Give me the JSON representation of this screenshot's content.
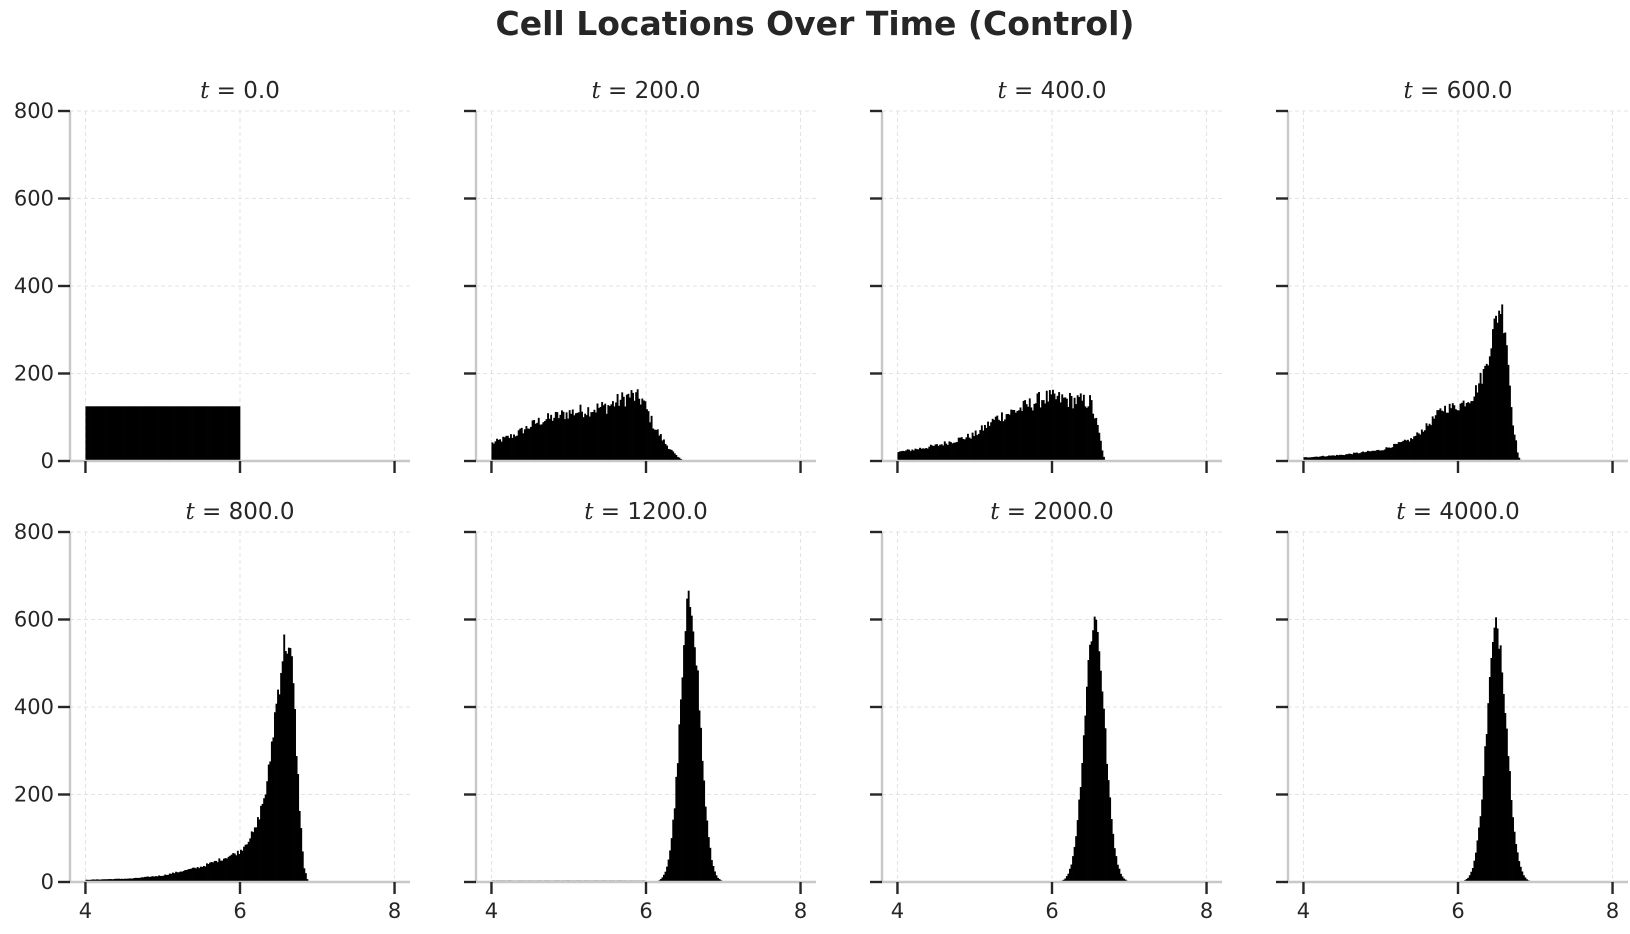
{
  "figure": {
    "suptitle": "Cell Locations Over Time (Control)"
  },
  "chart_data": [
    {
      "type": "bar",
      "title": "t = 0.0",
      "title_prefix": "t",
      "title_value": "0.0",
      "xlim": [
        3.8,
        8.2
      ],
      "ylim": [
        0,
        800
      ],
      "xticks": [
        4,
        6,
        8
      ],
      "yticks": [
        0,
        200,
        400,
        600,
        800
      ],
      "grid": true,
      "bin_width": 0.02,
      "histogram": {
        "shape": "uniform",
        "x_start": 4.0,
        "x_end": 6.0,
        "height": 125
      }
    },
    {
      "type": "bar",
      "title": "t = 200.0",
      "title_prefix": "t",
      "title_value": "200.0",
      "xlim": [
        3.8,
        8.2
      ],
      "ylim": [
        0,
        800
      ],
      "xticks": [
        4,
        6,
        8
      ],
      "yticks": [
        0,
        200,
        400,
        600,
        800
      ],
      "grid": true,
      "bin_width": 0.02,
      "histogram": {
        "shape": "profile",
        "points": [
          [
            4.0,
            40
          ],
          [
            4.3,
            60
          ],
          [
            4.6,
            90
          ],
          [
            5.0,
            110
          ],
          [
            5.5,
            125
          ],
          [
            5.8,
            150
          ],
          [
            5.95,
            140
          ],
          [
            6.1,
            80
          ],
          [
            6.25,
            40
          ],
          [
            6.4,
            10
          ],
          [
            6.5,
            0
          ]
        ],
        "noise": 0.14
      }
    },
    {
      "type": "bar",
      "title": "t = 400.0",
      "title_prefix": "t",
      "title_value": "400.0",
      "xlim": [
        3.8,
        8.2
      ],
      "ylim": [
        0,
        800
      ],
      "xticks": [
        4,
        6,
        8
      ],
      "yticks": [
        0,
        200,
        400,
        600,
        800
      ],
      "grid": true,
      "bin_width": 0.02,
      "histogram": {
        "shape": "profile",
        "points": [
          [
            4.0,
            20
          ],
          [
            4.5,
            35
          ],
          [
            5.0,
            60
          ],
          [
            5.3,
            100
          ],
          [
            5.6,
            120
          ],
          [
            5.9,
            145
          ],
          [
            6.2,
            140
          ],
          [
            6.5,
            135
          ],
          [
            6.6,
            70
          ],
          [
            6.68,
            0
          ]
        ],
        "noise": 0.14
      }
    },
    {
      "type": "bar",
      "title": "t = 600.0",
      "title_prefix": "t",
      "title_value": "600.0",
      "xlim": [
        3.8,
        8.2
      ],
      "ylim": [
        0,
        800
      ],
      "xticks": [
        4,
        6,
        8
      ],
      "yticks": [
        0,
        200,
        400,
        600,
        800
      ],
      "grid": true,
      "bin_width": 0.02,
      "histogram": {
        "shape": "profile",
        "points": [
          [
            4.0,
            8
          ],
          [
            4.5,
            14
          ],
          [
            5.0,
            25
          ],
          [
            5.4,
            50
          ],
          [
            5.6,
            80
          ],
          [
            5.8,
            120
          ],
          [
            6.0,
            125
          ],
          [
            6.2,
            150
          ],
          [
            6.35,
            210
          ],
          [
            6.5,
            330
          ],
          [
            6.55,
            355
          ],
          [
            6.62,
            300
          ],
          [
            6.7,
            100
          ],
          [
            6.78,
            10
          ],
          [
            6.82,
            0
          ]
        ],
        "noise": 0.1
      }
    },
    {
      "type": "bar",
      "title": "t = 800.0",
      "title_prefix": "t",
      "title_value": "800.0",
      "xlim": [
        3.8,
        8.2
      ],
      "ylim": [
        0,
        800
      ],
      "xticks": [
        4,
        6,
        8
      ],
      "yticks": [
        0,
        200,
        400,
        600,
        800
      ],
      "grid": true,
      "bin_width": 0.02,
      "histogram": {
        "shape": "profile",
        "points": [
          [
            4.0,
            5
          ],
          [
            4.6,
            8
          ],
          [
            5.0,
            15
          ],
          [
            5.5,
            35
          ],
          [
            5.8,
            55
          ],
          [
            6.0,
            70
          ],
          [
            6.2,
            120
          ],
          [
            6.35,
            220
          ],
          [
            6.45,
            380
          ],
          [
            6.55,
            520
          ],
          [
            6.6,
            560
          ],
          [
            6.68,
            480
          ],
          [
            6.76,
            200
          ],
          [
            6.82,
            40
          ],
          [
            6.88,
            0
          ]
        ],
        "noise": 0.08
      }
    },
    {
      "type": "bar",
      "title": "t = 1200.0",
      "title_prefix": "t",
      "title_value": "1200.0",
      "xlim": [
        3.8,
        8.2
      ],
      "ylim": [
        0,
        800
      ],
      "xticks": [
        4,
        6,
        8
      ],
      "yticks": [
        0,
        200,
        400,
        600,
        800
      ],
      "grid": true,
      "bin_width": 0.02,
      "histogram": {
        "shape": "gaussian",
        "mu": 6.57,
        "sigma": 0.125,
        "peak": 640,
        "tail_start": 4.0,
        "tail_height": 3,
        "tail_end": 6.0,
        "noise": 0.07
      }
    },
    {
      "type": "bar",
      "title": "t = 2000.0",
      "title_prefix": "t",
      "title_value": "2000.0",
      "xlim": [
        3.8,
        8.2
      ],
      "ylim": [
        0,
        800
      ],
      "xticks": [
        4,
        6,
        8
      ],
      "yticks": [
        0,
        200,
        400,
        600,
        800
      ],
      "grid": true,
      "bin_width": 0.02,
      "histogram": {
        "shape": "gaussian",
        "mu": 6.55,
        "sigma": 0.13,
        "peak": 600,
        "tail_start": 5.8,
        "tail_height": 1,
        "tail_end": 6.0,
        "noise": 0.06
      }
    },
    {
      "type": "bar",
      "title": "t = 4000.0",
      "title_prefix": "t",
      "title_value": "4000.0",
      "xlim": [
        3.8,
        8.2
      ],
      "ylim": [
        0,
        800
      ],
      "xticks": [
        4,
        6,
        8
      ],
      "yticks": [
        0,
        200,
        400,
        600,
        800
      ],
      "grid": true,
      "bin_width": 0.02,
      "histogram": {
        "shape": "gaussian",
        "mu": 6.5,
        "sigma": 0.13,
        "peak": 580,
        "tail_start": 6.0,
        "tail_height": 0,
        "tail_end": 6.0,
        "noise": 0.06
      }
    }
  ]
}
